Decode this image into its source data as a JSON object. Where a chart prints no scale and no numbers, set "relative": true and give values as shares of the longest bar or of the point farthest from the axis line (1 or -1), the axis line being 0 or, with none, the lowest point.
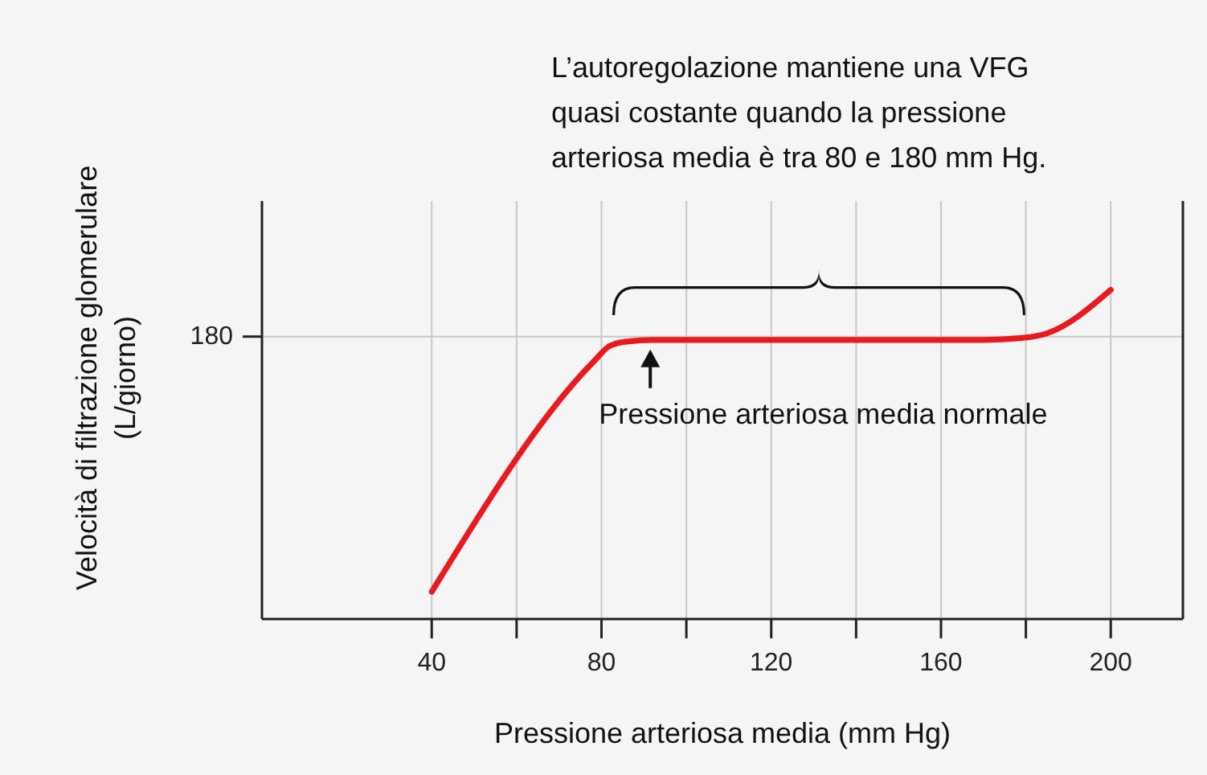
{
  "chart_data": {
    "type": "line",
    "relative": true,
    "xlabel": "Pressione arteriosa media (mm Hg)",
    "ylabel": "Velocità di filtrazione glomerulare (L/giorno)",
    "x": [
      40,
      78,
      82,
      86,
      92,
      110,
      140,
      170,
      180,
      185,
      200
    ],
    "series": [
      {
        "color": "#e8191f",
        "values": [
          0.083,
          0.78,
          0.83,
          0.843,
          0.848,
          0.848,
          0.848,
          0.848,
          0.855,
          0.868,
          1
        ]
      }
    ],
    "xlim": [
      0,
      217
    ],
    "xticks": [
      40,
      {
        "value": 60,
        "label": null
      },
      80,
      {
        "value": 100,
        "label": null
      },
      120,
      {
        "value": 140,
        "label": null
      },
      160,
      {
        "value": 180,
        "label": null
      },
      200
    ],
    "grid": true,
    "marker": "none",
    "line_style": "solid",
    "ref_lines": [
      {
        "axis": "y",
        "value": 0.858,
        "label": null
      }
    ],
    "annotations": [
      "180",
      "L’autoregolazione mantiene una VFG quasi costante quando la pressione arteriosa media è tra 80 e 180 mm Hg.",
      {
        "text": "Pressione arteriosa media normale",
        "x": 91.5,
        "y": 0.848
      }
    ]
  }
}
